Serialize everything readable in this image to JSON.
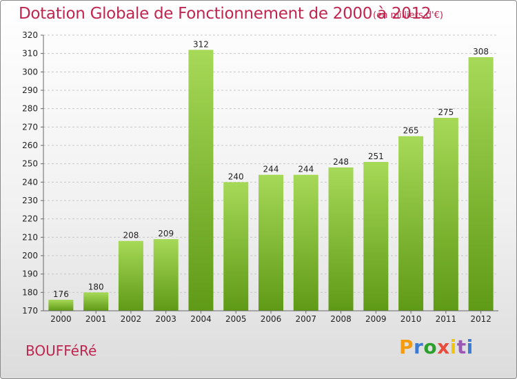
{
  "header": {
    "title": "Dotation Globale de Fonctionnement de 2000 à 2012",
    "subtitle": "(en milliers d'€)"
  },
  "footer": {
    "commune": "BOUFFéRé",
    "logo_text": "Proxiti",
    "logo_colors": [
      "#f39c12",
      "#3b7bd4",
      "#2ca02c",
      "#e74c3c",
      "#f1c40f",
      "#9b59b6",
      "#3b7bd4"
    ]
  },
  "chart_data": {
    "type": "bar",
    "categories": [
      "2000",
      "2001",
      "2002",
      "2003",
      "2004",
      "2005",
      "2006",
      "2007",
      "2008",
      "2009",
      "2010",
      "2011",
      "2012"
    ],
    "values": [
      176,
      180,
      208,
      209,
      312,
      240,
      244,
      244,
      248,
      251,
      265,
      275,
      308
    ],
    "title": "Dotation Globale de Fonctionnement de 2000 à 2012",
    "ylim": [
      170,
      320
    ],
    "yticks": [
      170,
      180,
      190,
      200,
      210,
      220,
      230,
      240,
      250,
      260,
      270,
      280,
      290,
      300,
      310,
      320
    ],
    "grid": true,
    "bar_color_light": "#a6d957",
    "bar_color_dark": "#5f9a16",
    "axis_color": "#666666"
  }
}
